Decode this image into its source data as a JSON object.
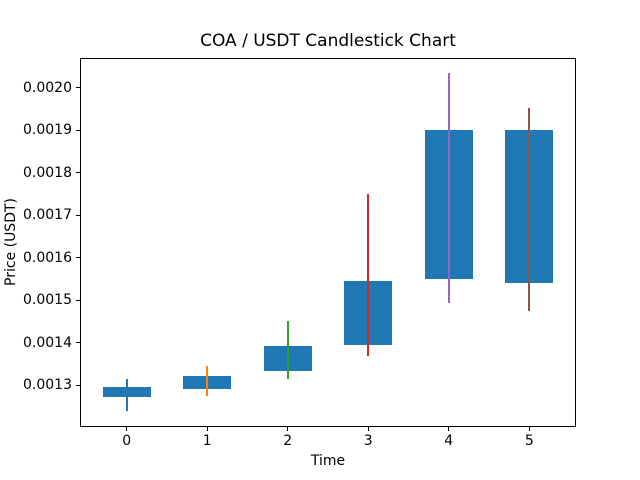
{
  "chart_data": {
    "type": "candlestick",
    "title": "COA / USDT Candlestick Chart",
    "xlabel": "Time",
    "ylabel": "Price (USDT)",
    "xlim": [
      -0.58,
      5.58
    ],
    "ylim": [
      0.001202,
      0.00207
    ],
    "xticks": [
      0,
      1,
      2,
      3,
      4,
      5
    ],
    "yticks": [
      0.0013,
      0.0014,
      0.0015,
      0.0016,
      0.0017,
      0.0018,
      0.0019,
      0.002
    ],
    "ytick_format_decimals": 4,
    "grid": false,
    "legend": false,
    "body_color": "#1f77b4",
    "body_width_units": 0.6,
    "candles": [
      {
        "x": 0,
        "open": 0.001273,
        "high": 0.001315,
        "low": 0.00124,
        "close": 0.001295,
        "wick_color": "#1f77b4"
      },
      {
        "x": 1,
        "open": 0.001291,
        "high": 0.001345,
        "low": 0.001275,
        "close": 0.001322,
        "wick_color": "#ff7f0e"
      },
      {
        "x": 2,
        "open": 0.001334,
        "high": 0.001451,
        "low": 0.001316,
        "close": 0.001393,
        "wick_color": "#2ca02c"
      },
      {
        "x": 3,
        "open": 0.001395,
        "high": 0.001749,
        "low": 0.001369,
        "close": 0.001546,
        "wick_color": "#d62728"
      },
      {
        "x": 4,
        "open": 0.00155,
        "high": 0.002034,
        "low": 0.001493,
        "close": 0.0019,
        "wick_color": "#9467bd"
      },
      {
        "x": 5,
        "open": 0.0019,
        "high": 0.001952,
        "low": 0.001475,
        "close": 0.00154,
        "wick_color": "#8c564b"
      }
    ]
  }
}
